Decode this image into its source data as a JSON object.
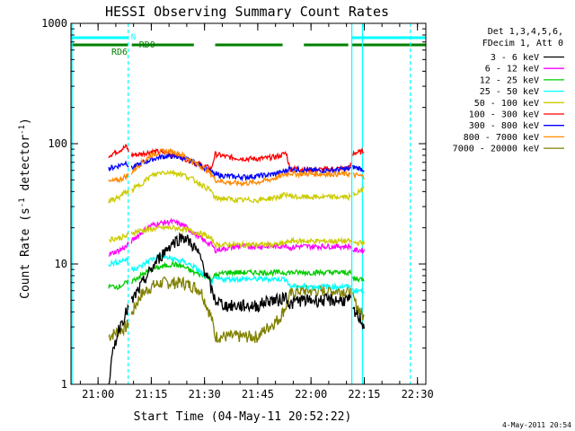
{
  "chart_data": {
    "type": "line",
    "title": "HESSI Observing Summary Count Rates",
    "xlabel": "Start Time (04-May-11 20:52:22)",
    "ylabel_main": "Count Rate (s",
    "ylabel_sup1": "-1",
    "ylabel_mid": " detector",
    "ylabel_sup2": "-1",
    "ylabel_end": ")",
    "y_scale": "log",
    "ylim": [
      1,
      1000
    ],
    "xlim": [
      "20:52:22",
      "22:32:22"
    ],
    "y_ticks": [
      "1",
      "10",
      "100",
      "1000"
    ],
    "x_ticks": [
      "21:00",
      "21:15",
      "21:30",
      "21:45",
      "22:00",
      "22:15",
      "22:30"
    ],
    "legend_header": [
      "Det 1,3,4,5,6,",
      "FDecim 1, Att 0"
    ],
    "footer_date": "4-May-2011 20:54",
    "flags": {
      "night_label": "N",
      "rd0_label": "RD0",
      "rd6_label": "RD6",
      "night_color": "#00ffff",
      "rd_color": "#008000",
      "night_segments": [
        [
          "20:52:22",
          "21:08:30"
        ],
        [
          "22:11:30",
          "22:32:22"
        ]
      ],
      "rd0_segments": [
        [
          "21:08:30",
          "21:08:45"
        ]
      ],
      "rd6_segments": [
        [
          "20:52:22",
          "21:08:30"
        ],
        [
          "21:09:30",
          "21:27:00"
        ],
        [
          "21:33:00",
          "21:52:00"
        ],
        [
          "21:58:00",
          "22:10:30"
        ],
        [
          "22:11:30",
          "22:32:22"
        ]
      ]
    },
    "vlines_solid": [
      "20:52:40",
      "22:11:30",
      "22:14:30"
    ],
    "vlines_dashed": [
      "21:08:30",
      "22:28:00"
    ],
    "gaps": [
      [
        "21:08:40",
        "21:09:20"
      ],
      [
        "22:11:15",
        "22:11:45"
      ]
    ],
    "data_start": "21:03:00",
    "data_end": "22:15:00",
    "series": [
      {
        "name": "3 - 6 keV",
        "color": "#000000",
        "x": [
          "21:03",
          "21:06",
          "21:08",
          "21:09",
          "21:12",
          "21:15",
          "21:18",
          "21:21",
          "21:24",
          "21:27",
          "21:29",
          "21:30",
          "21:32",
          "21:33",
          "21:36",
          "21:39",
          "21:42",
          "21:45",
          "21:48",
          "21:51",
          "21:53",
          "21:54",
          "21:56",
          "21:59",
          "22:02",
          "22:05",
          "22:08",
          "22:11",
          "22:12",
          "22:14",
          "22:15"
        ],
        "y": [
          1,
          3,
          4,
          4.5,
          6.5,
          9,
          12,
          15,
          17,
          14,
          11,
          9,
          6,
          5,
          4.5,
          4.5,
          4.5,
          4.5,
          5,
          5,
          5.5,
          4.5,
          5,
          5,
          5,
          5,
          5,
          5,
          4,
          3.5,
          3
        ]
      },
      {
        "name": "6 - 12 keV",
        "color": "#ff00ff",
        "x": [
          "21:03",
          "21:06",
          "21:08",
          "21:09",
          "21:12",
          "21:15",
          "21:18",
          "21:21",
          "21:24",
          "21:27",
          "21:30",
          "21:32",
          "21:33",
          "21:36",
          "21:39",
          "21:42",
          "21:45",
          "21:48",
          "21:51",
          "21:53",
          "21:54",
          "21:56",
          "21:59",
          "22:02",
          "22:05",
          "22:08",
          "22:11",
          "22:12",
          "22:14",
          "22:15"
        ],
        "y": [
          12,
          13,
          14,
          15,
          18,
          21,
          22,
          22.5,
          21,
          18,
          15.5,
          14.5,
          13,
          13.5,
          14,
          14,
          14,
          14,
          14,
          14.5,
          13.5,
          14,
          14,
          14,
          14,
          14,
          14,
          13,
          13,
          13
        ]
      },
      {
        "name": "12 - 25 keV",
        "color": "#00cc00",
        "x": [
          "21:03",
          "21:06",
          "21:08",
          "21:09",
          "21:12",
          "21:15",
          "21:18",
          "21:21",
          "21:24",
          "21:27",
          "21:30",
          "21:32",
          "21:33",
          "21:36",
          "21:39",
          "21:42",
          "21:45",
          "21:48",
          "21:51",
          "21:53",
          "21:54",
          "21:56",
          "21:59",
          "22:02",
          "22:05",
          "22:08",
          "22:11",
          "22:12",
          "22:14",
          "22:15"
        ],
        "y": [
          6.5,
          6.5,
          7,
          7,
          8,
          9,
          9.5,
          10,
          9.5,
          8.5,
          8,
          7.5,
          8,
          8.5,
          8.5,
          8.5,
          8.5,
          8.5,
          8.5,
          8.5,
          8.5,
          8.5,
          8.5,
          8.5,
          8.5,
          8.5,
          8.5,
          7.5,
          7.5,
          7.5
        ]
      },
      {
        "name": "25 - 50 keV",
        "color": "#00ffff",
        "x": [
          "21:03",
          "21:06",
          "21:08",
          "21:09",
          "21:12",
          "21:15",
          "21:18",
          "21:21",
          "21:24",
          "21:27",
          "21:30",
          "21:32",
          "21:33",
          "21:36",
          "21:39",
          "21:42",
          "21:45",
          "21:48",
          "21:51",
          "21:53",
          "21:54",
          "21:56",
          "21:59",
          "22:02",
          "22:05",
          "22:08",
          "22:11",
          "22:12",
          "22:14",
          "22:15"
        ],
        "y": [
          10,
          10.5,
          11,
          9,
          9.5,
          11,
          11.5,
          11,
          10.5,
          9.5,
          8,
          7,
          7.5,
          7.5,
          7.5,
          7.5,
          7.5,
          7.5,
          7.5,
          7.5,
          6.5,
          6.5,
          6.5,
          6.5,
          6.5,
          6.5,
          6.5,
          6,
          6,
          6
        ]
      },
      {
        "name": "50 - 100 keV",
        "color": "#cccc00",
        "x": [
          "21:03",
          "21:06",
          "21:08",
          "21:09",
          "21:12",
          "21:15",
          "21:18",
          "21:21",
          "21:24",
          "21:27",
          "21:30",
          "21:32",
          "21:33",
          "21:36",
          "21:39",
          "21:42",
          "21:45",
          "21:48",
          "21:51",
          "21:53",
          "21:54",
          "21:56",
          "21:59",
          "22:02",
          "22:05",
          "22:08",
          "22:11",
          "22:12",
          "22:14",
          "22:15"
        ],
        "y": [
          16,
          16.5,
          17,
          18,
          19,
          19.5,
          20,
          20,
          19.5,
          18.5,
          17.5,
          16,
          14.5,
          14.5,
          14.5,
          14.5,
          14.5,
          14.5,
          14.5,
          15,
          15.5,
          15.5,
          15.5,
          15.5,
          15.5,
          15.5,
          15.5,
          15,
          15,
          15
        ]
      },
      {
        "name": "100 - 300 keV",
        "color": "#ff0000",
        "x": [
          "21:03",
          "21:06",
          "21:08",
          "21:09",
          "21:12",
          "21:15",
          "21:18",
          "21:21",
          "21:24",
          "21:27",
          "21:30",
          "21:32",
          "21:33",
          "21:36",
          "21:39",
          "21:42",
          "21:45",
          "21:48",
          "21:51",
          "21:53",
          "21:54",
          "21:56",
          "21:59",
          "22:02",
          "22:05",
          "22:08",
          "22:11",
          "22:12",
          "22:14",
          "22:15"
        ],
        "y": [
          80,
          88,
          95,
          80,
          82,
          86,
          85,
          82,
          76,
          70,
          65,
          62,
          82,
          78,
          76,
          75,
          75,
          76,
          79,
          84,
          62,
          62,
          61,
          61,
          61,
          62,
          63,
          84,
          85,
          88
        ]
      },
      {
        "name": "300 - 800 keV",
        "color": "#0000ff",
        "x": [
          "21:03",
          "21:06",
          "21:08",
          "21:09",
          "21:12",
          "21:15",
          "21:18",
          "21:21",
          "21:24",
          "21:27",
          "21:30",
          "21:32",
          "21:33",
          "21:36",
          "21:39",
          "21:42",
          "21:45",
          "21:48",
          "21:51",
          "21:53",
          "21:54",
          "21:56",
          "21:59",
          "22:02",
          "22:05",
          "22:08",
          "22:11",
          "22:12",
          "22:14",
          "22:15"
        ],
        "y": [
          62,
          66,
          70,
          62,
          68,
          74,
          78,
          79,
          76,
          70,
          63,
          58,
          55,
          54,
          53,
          53,
          54,
          55,
          57,
          60,
          62,
          61,
          60,
          60,
          60,
          61,
          62,
          64,
          62,
          61
        ]
      },
      {
        "name": "800 - 7000 keV",
        "color": "#ff8800",
        "x": [
          "21:03",
          "21:06",
          "21:08",
          "21:09",
          "21:12",
          "21:15",
          "21:18",
          "21:21",
          "21:24",
          "21:27",
          "21:30",
          "21:32",
          "21:33",
          "21:36",
          "21:39",
          "21:42",
          "21:45",
          "21:48",
          "21:51",
          "21:53",
          "21:54",
          "21:56",
          "21:59",
          "22:02",
          "22:05",
          "22:08",
          "22:11",
          "22:12",
          "22:14",
          "22:15"
        ],
        "y": [
          48,
          50,
          54,
          56,
          68,
          80,
          86,
          86,
          80,
          70,
          62,
          56,
          50,
          48,
          47,
          47,
          48,
          50,
          53,
          56,
          57,
          56,
          56,
          56,
          56,
          56,
          56,
          55,
          54,
          53
        ]
      },
      {
        "name": "7000 - 20000 keV",
        "color": "#808000",
        "x": [
          "21:03",
          "21:06",
          "21:08",
          "21:09",
          "21:12",
          "21:15",
          "21:18",
          "21:21",
          "21:24",
          "21:27",
          "21:29",
          "21:30",
          "21:32",
          "21:33",
          "21:36",
          "21:39",
          "21:42",
          "21:45",
          "21:48",
          "21:51",
          "21:53",
          "21:54",
          "21:56",
          "21:59",
          "22:02",
          "22:05",
          "22:08",
          "22:11",
          "22:12",
          "22:14",
          "22:15"
        ],
        "y": [
          2.5,
          2.8,
          3,
          3.5,
          5.5,
          6.5,
          7,
          7,
          7,
          6.5,
          6,
          5,
          3.5,
          2.5,
          2.5,
          2.5,
          2.5,
          2.5,
          3,
          3.5,
          4.5,
          5.5,
          6,
          6,
          6,
          6,
          6,
          6,
          5,
          4,
          3.5
        ]
      },
      {
        "name": "",
        "color": "#cccc00",
        "x": [
          "21:03",
          "21:06",
          "21:08",
          "21:09",
          "21:12",
          "21:15",
          "21:18",
          "21:21",
          "21:24",
          "21:27",
          "21:30",
          "21:32",
          "21:33",
          "21:36",
          "21:39",
          "21:42",
          "21:45",
          "21:48",
          "21:51",
          "21:53",
          "21:54",
          "21:56",
          "21:59",
          "22:02",
          "22:05",
          "22:08",
          "22:11",
          "22:12",
          "22:14",
          "22:15"
        ],
        "y": [
          33,
          36,
          40,
          40,
          46,
          54,
          58,
          58,
          55,
          50,
          44,
          40,
          35,
          35,
          34,
          34,
          34,
          35,
          36,
          38,
          37,
          36,
          36,
          36,
          36,
          36,
          36,
          38,
          40,
          44
        ]
      }
    ]
  }
}
